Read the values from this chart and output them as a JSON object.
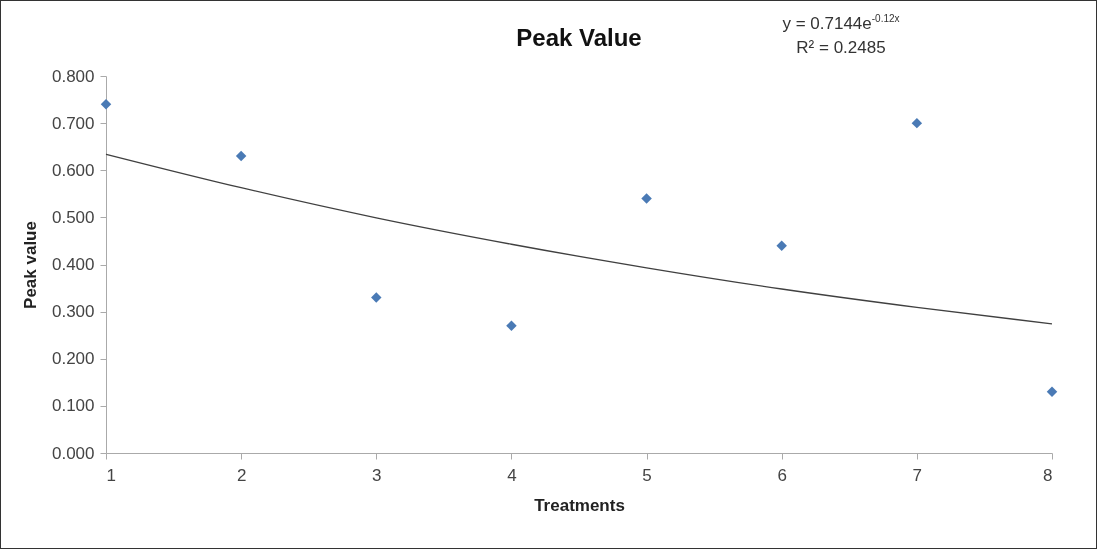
{
  "chart_data": {
    "type": "scatter",
    "title": "Peak Value",
    "xlabel": "Treatments",
    "ylabel": "Peak value",
    "x": [
      1,
      2,
      3,
      4,
      5,
      6,
      7,
      8
    ],
    "series": [
      {
        "color": "#4a7ab5",
        "marker": "diamond",
        "values": [
          0.74,
          0.63,
          0.33,
          0.27,
          0.54,
          0.44,
          0.7,
          0.13
        ]
      },
      {
        "type": "line",
        "color": "#404040",
        "x": [
          1,
          2,
          3,
          4,
          5,
          6,
          7,
          8
        ],
        "values": [
          0.634,
          0.563,
          0.499,
          0.443,
          0.393,
          0.348,
          0.309,
          0.274
        ]
      }
    ],
    "grid": false,
    "xlim": [
      1,
      8
    ],
    "xticks": [
      1,
      2,
      3,
      4,
      5,
      6,
      7,
      8
    ],
    "ylim": [
      0,
      0.8
    ],
    "yticks": [
      {
        "value": 0,
        "label": "0.000"
      },
      {
        "value": 0.1,
        "label": "0.100"
      },
      {
        "value": 0.2,
        "label": "0.200"
      },
      {
        "value": 0.3,
        "label": "0.300"
      },
      {
        "value": 0.4,
        "label": "0.400"
      },
      {
        "value": 0.5,
        "label": "0.500"
      },
      {
        "value": 0.6,
        "label": "0.600"
      },
      {
        "value": 0.7,
        "label": "0.700"
      },
      {
        "value": 0.8,
        "label": "0.800"
      }
    ],
    "annotations": [
      "y = 0.7144e$^{-0.12x}$",
      "R² = 0.2485"
    ]
  }
}
